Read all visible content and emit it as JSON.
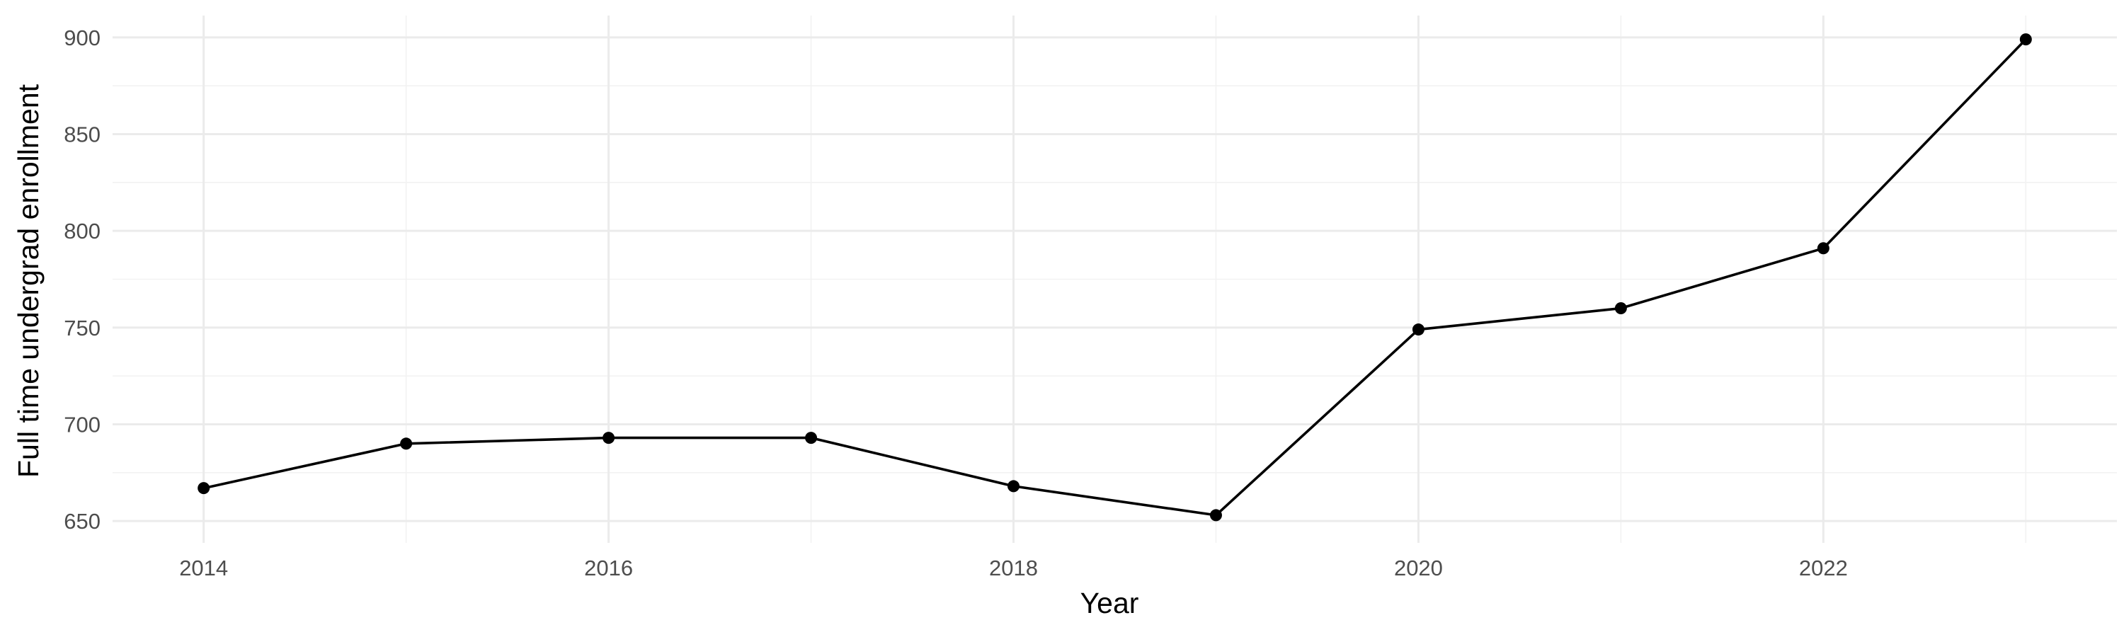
{
  "chart_data": {
    "type": "line",
    "title": "",
    "xlabel": "Year",
    "ylabel": "Full time undergrad enrollment",
    "x": [
      2014,
      2015,
      2016,
      2017,
      2018,
      2019,
      2020,
      2021,
      2022,
      2023
    ],
    "series": [
      {
        "values": [
          667,
          690,
          693,
          693,
          668,
          653,
          749,
          760,
          791,
          899
        ]
      }
    ],
    "xlim": [
      2013.55,
      2023.45
    ],
    "ylim": [
      638.7,
      911.3
    ],
    "x_ticks": [
      2014,
      2016,
      2018,
      2020,
      2022
    ],
    "x_minor_ticks": [
      2015,
      2017,
      2019,
      2021,
      2023
    ],
    "y_ticks": [
      650,
      700,
      750,
      800,
      850,
      900
    ],
    "y_minor_ticks": [
      675,
      725,
      775,
      825,
      875
    ],
    "grid": true,
    "legend": "none",
    "colors": {
      "line": "#000000",
      "grid_major": "#ebebeb",
      "grid_minor": "#f2f2f2",
      "tick_text": "#4d4d4d"
    }
  }
}
